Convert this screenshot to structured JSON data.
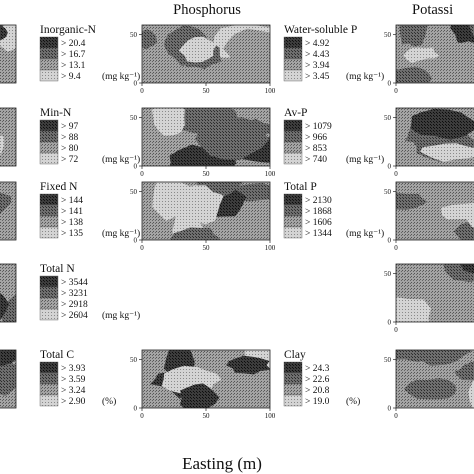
{
  "figure": {
    "column_headers": [
      "Phosphorus",
      "Potassi"
    ],
    "x_axis_title": "Easting (m)"
  },
  "chart_data": [
    {
      "type": "heatmap",
      "title": "Inorganic-N",
      "legend": [
        "> 20.4",
        "> 16.7",
        "> 13.1",
        "> 9.4"
      ],
      "legend_unit": "(mg kg⁻¹)",
      "legend_levels": [
        20.4,
        16.7,
        13.1,
        9.4
      ]
    },
    {
      "type": "heatmap",
      "title": "Min-N",
      "legend": [
        "> 97",
        "> 88",
        "> 80",
        "> 72"
      ],
      "legend_unit": "(mg kg⁻¹)",
      "legend_levels": [
        97,
        88,
        80,
        72
      ]
    },
    {
      "type": "heatmap",
      "title": "Fixed N",
      "legend": [
        "> 144",
        "> 141",
        "> 138",
        "> 135"
      ],
      "legend_unit": "(mg kg⁻¹)",
      "legend_levels": [
        144,
        141,
        138,
        135
      ]
    },
    {
      "type": "heatmap",
      "title": "Total N",
      "legend": [
        "> 3544",
        "> 3231",
        "> 2918",
        "> 2604"
      ],
      "legend_unit": "(mg kg⁻¹)",
      "legend_levels": [
        3544,
        3231,
        2918,
        2604
      ]
    },
    {
      "type": "heatmap",
      "title": "Total C",
      "legend": [
        "> 3.93",
        "> 3.59",
        "> 3.24",
        "> 2.90"
      ],
      "legend_unit": "(%)",
      "legend_levels": [
        3.93,
        3.59,
        3.24,
        2.9
      ]
    },
    {
      "type": "heatmap",
      "title": "Water-soluble P",
      "legend": [
        "> 4.92",
        "> 4.43",
        "> 3.94",
        "> 3.45"
      ],
      "legend_unit": "(mg kg⁻¹)",
      "legend_levels": [
        4.92,
        4.43,
        3.94,
        3.45
      ],
      "x_ticks": [
        0,
        50,
        100
      ],
      "y_ticks": [
        0,
        50
      ]
    },
    {
      "type": "heatmap",
      "title": "Av-P",
      "legend": [
        "> 1079",
        "> 966",
        "> 853",
        "> 740"
      ],
      "legend_unit": "(mg kg⁻¹)",
      "legend_levels": [
        1079,
        966,
        853,
        740
      ],
      "x_ticks": [
        0,
        50,
        100
      ],
      "y_ticks": [
        0,
        50
      ]
    },
    {
      "type": "heatmap",
      "title": "Total P",
      "legend": [
        "> 2130",
        "> 1868",
        "> 1606",
        "> 1344"
      ],
      "legend_unit": "(mg kg⁻¹)",
      "legend_levels": [
        2130,
        1868,
        1606,
        1344
      ],
      "x_ticks": [
        0,
        50,
        100
      ],
      "y_ticks": [
        0,
        50
      ]
    },
    {
      "type": "heatmap",
      "title": "Clay",
      "legend": [
        "> 24.3",
        "> 22.6",
        "> 20.8",
        "> 19.0"
      ],
      "legend_unit": "(%)",
      "legend_levels": [
        24.3,
        22.6,
        20.8,
        19.0
      ],
      "x_ticks": [
        0,
        50,
        100
      ],
      "y_ticks": [
        0,
        50
      ]
    },
    {
      "type": "heatmap",
      "title": "",
      "x_ticks": [
        0
      ],
      "y_ticks": [
        0,
        50
      ]
    },
    {
      "type": "heatmap",
      "title": "",
      "x_ticks": [
        0
      ],
      "y_ticks": [
        0,
        50
      ]
    },
    {
      "type": "heatmap",
      "title": "",
      "x_ticks": [
        0
      ],
      "y_ticks": [
        0,
        50
      ]
    },
    {
      "type": "heatmap",
      "title": "",
      "x_ticks": [
        0
      ],
      "y_ticks": [
        0,
        50
      ]
    },
    {
      "type": "heatmap",
      "title": "",
      "x_ticks": [
        0
      ],
      "y_ticks": [
        0,
        50
      ]
    }
  ]
}
